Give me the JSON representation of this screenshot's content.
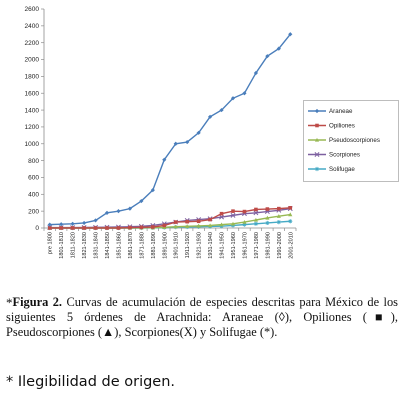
{
  "chart_data": {
    "type": "line",
    "categories": [
      "pre 1800",
      "1801-1810",
      "1811-1820",
      "1821-1830",
      "1831-1840",
      "1841-1850",
      "1851-1860",
      "1861-1870",
      "1871-1880",
      "1881-1890",
      "1891-1900",
      "1901-1910",
      "1911-1920",
      "1921-1930",
      "1931-1940",
      "1941-1950",
      "1951-1960",
      "1961-1970",
      "1971-1980",
      "1981-1990",
      "1991-2000",
      "2001-2010"
    ],
    "ylim": [
      0,
      2600
    ],
    "yticks": [
      "0",
      "200",
      "400",
      "600",
      "800",
      "1000",
      "1200",
      "1400",
      "1600",
      "1800",
      "2000",
      "2200",
      "2400",
      "2600"
    ],
    "grid": false,
    "legend_position": "right",
    "series": [
      {
        "name": "Araneae",
        "color": "#4a7ebb",
        "marker": "diamond",
        "values": [
          40,
          45,
          50,
          60,
          90,
          180,
          200,
          230,
          320,
          450,
          810,
          1000,
          1020,
          1130,
          1320,
          1400,
          1540,
          1600,
          1840,
          2040,
          2130,
          2300
        ]
      },
      {
        "name": "Opiliones",
        "color": "#be4b48",
        "marker": "square",
        "values": [
          0,
          0,
          0,
          0,
          0,
          0,
          0,
          5,
          8,
          12,
          30,
          70,
          75,
          80,
          100,
          170,
          200,
          195,
          220,
          225,
          230,
          240
        ]
      },
      {
        "name": "Pseudoscorpiones",
        "color": "#98b954",
        "marker": "triangle",
        "values": [
          0,
          0,
          0,
          0,
          0,
          0,
          0,
          0,
          2,
          4,
          8,
          15,
          20,
          25,
          30,
          40,
          50,
          70,
          95,
          120,
          140,
          160
        ]
      },
      {
        "name": "Scorpiones",
        "color": "#7d60a0",
        "marker": "x",
        "values": [
          5,
          5,
          5,
          6,
          8,
          10,
          12,
          15,
          20,
          30,
          50,
          70,
          90,
          100,
          110,
          130,
          150,
          170,
          180,
          195,
          210,
          230
        ]
      },
      {
        "name": "Solifugae",
        "color": "#46aac5",
        "marker": "star",
        "values": [
          0,
          0,
          0,
          0,
          0,
          0,
          0,
          0,
          0,
          2,
          5,
          10,
          12,
          15,
          18,
          22,
          30,
          40,
          50,
          60,
          70,
          80
        ]
      }
    ]
  },
  "caption": {
    "star": "*",
    "label": "Figura 2.",
    "text": " Curvas de acumulación de especies descritas para México de los siguientes 5 órdenes de Arachnida: Araneae (◊), Opiliones (■), Pseudoscorpiones (▲), Scorpiones(X) y Solifugae (*)."
  },
  "note": "* Ilegibilidad de origen."
}
